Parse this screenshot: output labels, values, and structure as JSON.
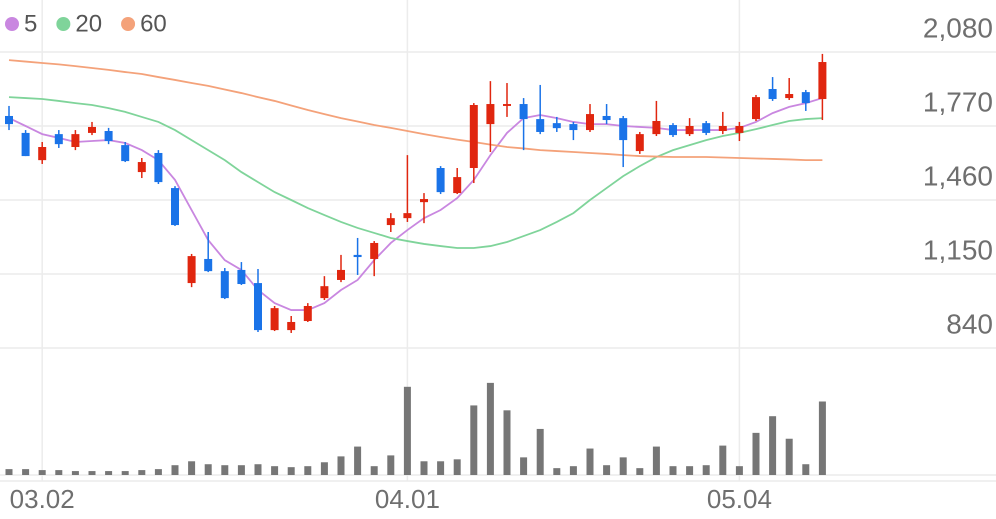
{
  "chart_data": {
    "type": "candlestick",
    "categories": [
      null,
      null,
      "03.02",
      null,
      null,
      null,
      null,
      null,
      null,
      null,
      null,
      null,
      null,
      null,
      null,
      null,
      null,
      null,
      null,
      null,
      null,
      null,
      null,
      null,
      "04.01",
      null,
      null,
      null,
      null,
      null,
      null,
      null,
      null,
      null,
      null,
      null,
      null,
      null,
      null,
      null,
      null,
      null,
      null,
      null,
      "05.04",
      null,
      null,
      null,
      null,
      null
    ],
    "open": [
      1812,
      1741,
      1627,
      1736,
      1682,
      1741,
      1749,
      1690,
      1577,
      1657,
      1510,
      1112,
      1213,
      1162,
      1167,
      1112,
      915,
      915,
      953,
      1049,
      1125,
      1230,
      1213,
      1355,
      1384,
      1451,
      1594,
      1489,
      1594,
      1778,
      1854,
      1862,
      1799,
      1782,
      1778,
      1753,
      1812,
      1803,
      1665,
      1736,
      1774,
      1736,
      1782,
      1749,
      1741,
      1799,
      1925,
      1887,
      1912,
      1883
    ],
    "high": [
      1854,
      1753,
      1703,
      1753,
      1753,
      1787,
      1762,
      1703,
      1636,
      1669,
      1518,
      1234,
      1326,
      1175,
      1200,
      1171,
      1016,
      974,
      1028,
      1141,
      1230,
      1301,
      1288,
      1405,
      1648,
      1489,
      1602,
      1594,
      1866,
      1958,
      1950,
      1887,
      1942,
      1808,
      1787,
      1862,
      1862,
      1812,
      1745,
      1875,
      1782,
      1803,
      1791,
      1829,
      1787,
      1900,
      1975,
      1971,
      1921,
      2072
    ],
    "low": [
      1753,
      1644,
      1611,
      1678,
      1669,
      1732,
      1694,
      1619,
      1552,
      1527,
      1351,
      1095,
      1158,
      1045,
      1104,
      907,
      911,
      903,
      949,
      1041,
      1116,
      1146,
      1141,
      1326,
      1368,
      1363,
      1485,
      1485,
      1531,
      1661,
      1808,
      1669,
      1736,
      1745,
      1711,
      1745,
      1778,
      1598,
      1653,
      1728,
      1724,
      1728,
      1732,
      1736,
      1707,
      1791,
      1875,
      1879,
      1833,
      1795
    ],
    "close": [
      1778,
      1644,
      1682,
      1694,
      1736,
      1766,
      1707,
      1623,
      1619,
      1535,
      1355,
      1225,
      1162,
      1049,
      1108,
      915,
      1007,
      949,
      1016,
      1099,
      1167,
      1221,
      1280,
      1384,
      1405,
      1464,
      1493,
      1556,
      1858,
      1862,
      1862,
      1799,
      1745,
      1761,
      1753,
      1820,
      1795,
      1711,
      1736,
      1791,
      1732,
      1770,
      1741,
      1770,
      1770,
      1891,
      1883,
      1904,
      1866,
      2038
    ],
    "volume": [
      6,
      6,
      5,
      5,
      4,
      4,
      4,
      4,
      5,
      6,
      10,
      14,
      11,
      10,
      10,
      11,
      9,
      8,
      9,
      13,
      19,
      29,
      9,
      20,
      90,
      14,
      14,
      16,
      71,
      94,
      66,
      18,
      47,
      7,
      9,
      27,
      10,
      18,
      7,
      29,
      9,
      9,
      10,
      30,
      9,
      43,
      60,
      37,
      11,
      75
    ],
    "up_color": "#e0260f",
    "down_color": "#1a73e8",
    "volume_color": "#767676",
    "series": [
      {
        "name": "5",
        "color": "#c987e0",
        "values": [
          1803,
          1770,
          1736,
          1720,
          1703,
          1707,
          1711,
          1699,
          1669,
          1627,
          1544,
          1418,
          1292,
          1208,
          1167,
          1083,
          1028,
          999,
          999,
          1028,
          1083,
          1125,
          1208,
          1280,
          1334,
          1384,
          1418,
          1468,
          1544,
          1648,
          1741,
          1803,
          1816,
          1803,
          1787,
          1778,
          1778,
          1770,
          1766,
          1762,
          1753,
          1753,
          1753,
          1753,
          1762,
          1787,
          1824,
          1850,
          1866,
          1887
        ]
      },
      {
        "name": "20",
        "color": "#7fd49a",
        "values": [
          1891,
          1887,
          1883,
          1875,
          1866,
          1858,
          1845,
          1829,
          1808,
          1787,
          1753,
          1711,
          1669,
          1627,
          1577,
          1535,
          1493,
          1460,
          1426,
          1397,
          1368,
          1343,
          1322,
          1301,
          1288,
          1276,
          1267,
          1259,
          1259,
          1267,
          1284,
          1309,
          1334,
          1368,
          1405,
          1460,
          1510,
          1560,
          1602,
          1640,
          1669,
          1690,
          1711,
          1728,
          1741,
          1757,
          1774,
          1791,
          1799,
          1803
        ]
      },
      {
        "name": "60",
        "color": "#f4a27a",
        "values": [
          2046,
          2040,
          2034,
          2028,
          2021,
          2013,
          2005,
          1996,
          1988,
          1975,
          1963,
          1950,
          1938,
          1923,
          1908,
          1891,
          1875,
          1856,
          1837,
          1820,
          1803,
          1789,
          1774,
          1762,
          1749,
          1736,
          1724,
          1713,
          1703,
          1692,
          1682,
          1676,
          1669,
          1665,
          1661,
          1657,
          1653,
          1648,
          1644,
          1642,
          1640,
          1640,
          1640,
          1638,
          1636,
          1634,
          1632,
          1630,
          1627,
          1627
        ]
      }
    ],
    "ylim": [
      840,
      2080
    ],
    "yticks": [
      840,
      {
        "value": 1150,
        "label": "1,150"
      },
      {
        "value": 1460,
        "label": "1,460"
      },
      {
        "value": 1770,
        "label": "1,770"
      },
      {
        "value": 2080,
        "label": "2,080"
      }
    ],
    "grid": true
  }
}
